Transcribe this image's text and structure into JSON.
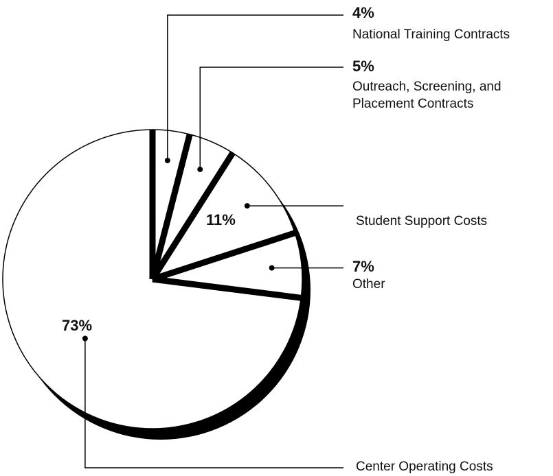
{
  "chart_data": {
    "type": "pie",
    "categories": [
      "National Training Contracts",
      "Outreach, Screening, and\nPlacement Contracts",
      "Student Support Costs",
      "Other",
      "Center Operating Costs"
    ],
    "values": [
      4,
      5,
      11,
      7,
      73
    ],
    "value_labels": [
      "4%",
      "5%",
      "11%",
      "7%",
      "73%"
    ],
    "color": "#ffffff"
  }
}
